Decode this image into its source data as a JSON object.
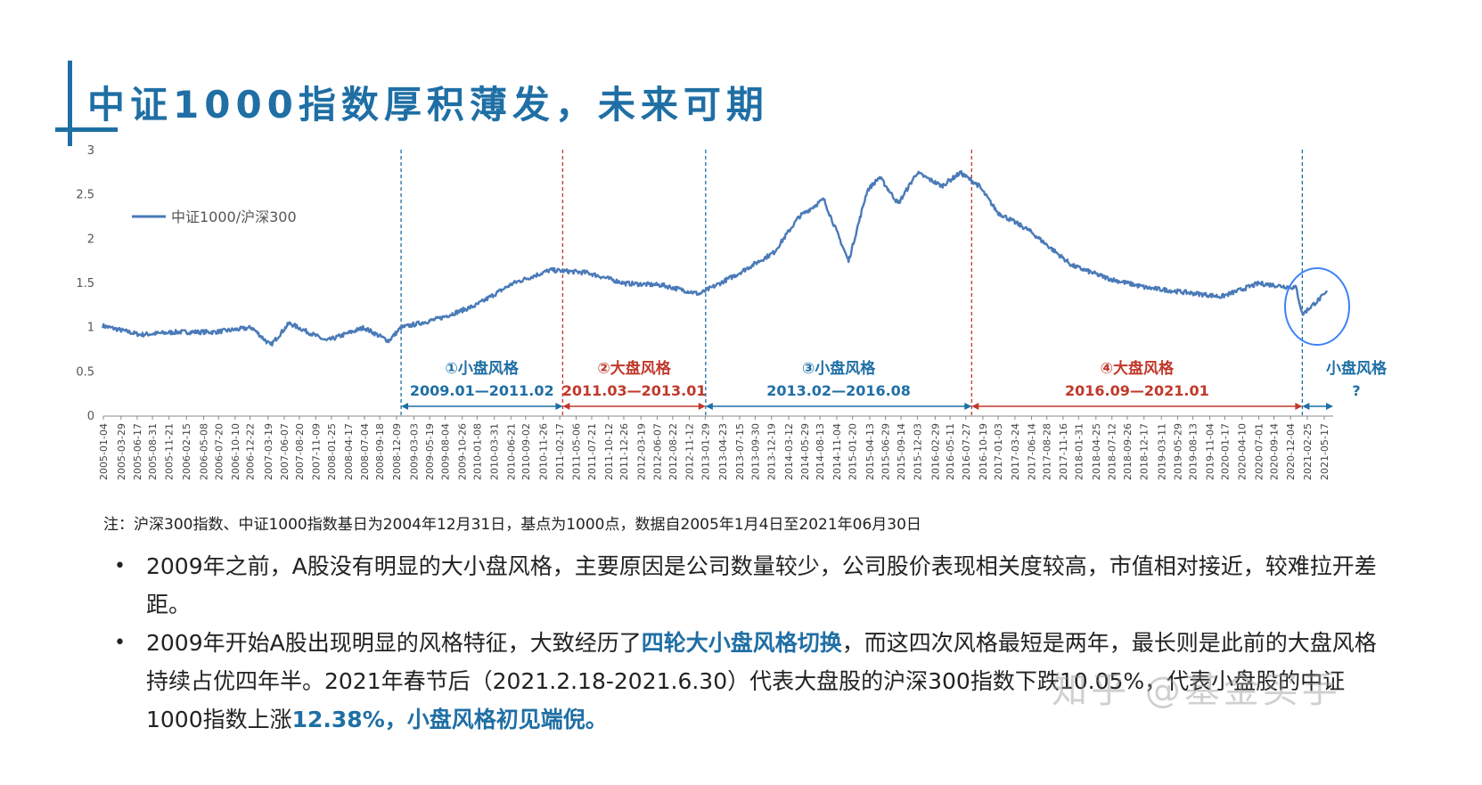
{
  "title": "中证1000指数厚积薄发，未来可期",
  "colors": {
    "accent": "#1f6fa5",
    "line": "#4a7ab8",
    "small_cap": "#1f6fa5",
    "large_cap": "#c0392b"
  },
  "chart_data": {
    "type": "line",
    "series": [
      {
        "name": "中证1000/沪深300"
      }
    ],
    "ylim": [
      0,
      3
    ],
    "yticks": [
      "0",
      "0.5",
      "1",
      "1.5",
      "2",
      "2.5",
      "3"
    ],
    "x_tick_labels": [
      "2005-01-04",
      "2005-03-29",
      "2005-06-17",
      "2005-08-31",
      "2005-11-21",
      "2006-02-15",
      "2006-05-08",
      "2006-07-20",
      "2006-10-10",
      "2006-12-22",
      "2007-03-19",
      "2007-06-07",
      "2007-08-20",
      "2007-11-09",
      "2008-01-25",
      "2008-04-17",
      "2008-07-04",
      "2008-09-18",
      "2008-12-09",
      "2009-03-03",
      "2009-05-19",
      "2009-08-04",
      "2009-10-26",
      "2010-01-08",
      "2010-03-31",
      "2010-06-21",
      "2010-09-02",
      "2010-11-26",
      "2011-02-17",
      "2011-05-06",
      "2011-07-21",
      "2011-10-12",
      "2011-12-26",
      "2012-03-19",
      "2012-06-07",
      "2012-08-22",
      "2012-11-12",
      "2013-01-29",
      "2013-04-23",
      "2013-07-15",
      "2013-09-30",
      "2013-12-19",
      "2014-03-12",
      "2014-05-29",
      "2014-08-13",
      "2014-11-04",
      "2015-01-20",
      "2015-04-13",
      "2015-06-29",
      "2015-09-14",
      "2015-12-03",
      "2016-02-29",
      "2016-05-11",
      "2016-07-27",
      "2016-10-19",
      "2017-01-03",
      "2017-03-24",
      "2017-06-14",
      "2017-08-28",
      "2017-11-16",
      "2018-01-31",
      "2018-04-25",
      "2018-07-12",
      "2018-09-26",
      "2018-12-17",
      "2019-03-11",
      "2019-05-29",
      "2019-08-13",
      "2019-11-04",
      "2020-01-17",
      "2020-04-10",
      "2020-07-01",
      "2020-09-14",
      "2020-12-04",
      "2021-02-25",
      "2021-05-17"
    ],
    "x": [
      "2005-01",
      "2005-07",
      "2006-01",
      "2006-07",
      "2007-01",
      "2007-04",
      "2007-07",
      "2008-01",
      "2008-07",
      "2008-11",
      "2009-01",
      "2009-07",
      "2010-01",
      "2010-07",
      "2011-01",
      "2011-07",
      "2012-01",
      "2012-07",
      "2013-01",
      "2013-07",
      "2014-01",
      "2014-05",
      "2014-09",
      "2015-01",
      "2015-04",
      "2015-06",
      "2015-09",
      "2015-12",
      "2016-04",
      "2016-07",
      "2016-10",
      "2017-01",
      "2017-06",
      "2018-01",
      "2018-07",
      "2019-01",
      "2019-07",
      "2020-01",
      "2020-07",
      "2021-01",
      "2021-02",
      "2021-06"
    ],
    "values": [
      1.02,
      0.92,
      0.95,
      0.95,
      1.0,
      0.8,
      1.05,
      0.85,
      1.0,
      0.85,
      1.0,
      1.1,
      1.25,
      1.5,
      1.65,
      1.62,
      1.5,
      1.48,
      1.38,
      1.6,
      1.85,
      2.25,
      2.45,
      1.75,
      2.55,
      2.7,
      2.4,
      2.75,
      2.6,
      2.75,
      2.6,
      2.3,
      2.1,
      1.7,
      1.55,
      1.45,
      1.4,
      1.35,
      1.5,
      1.45,
      1.15,
      1.4
    ],
    "regions": [
      {
        "label": "①小盘风格",
        "range": "2009.01—2011.02",
        "style": "small_cap"
      },
      {
        "label": "②大盘风格",
        "range": "2011.03—2013.01",
        "style": "large_cap"
      },
      {
        "label": "③小盘风格",
        "range": "2013.02—2016.08",
        "style": "small_cap"
      },
      {
        "label": "④大盘风格",
        "range": "2016.09—2021.01",
        "style": "large_cap"
      },
      {
        "label": "小盘风格",
        "range": "?",
        "style": "small_cap"
      }
    ]
  },
  "note": "注：沪深300指数、中证1000指数基日为2004年12月31日，基点为1000点，数据自2005年1月4日至2021年06月30日",
  "bullets": [
    {
      "text": "2009年之前，A股没有明显的大小盘风格，主要原因是公司数量较少，公司股价表现相关度较高，市值相对接近，较难拉开差距。"
    },
    {
      "pre": "2009年开始A股出现明显的风格特征，大致经历了",
      "hl1": "四轮大小盘风格切换",
      "mid": "，而这四次风格最短是两年，最长则是此前的大盘风格持续占优四年半。2021年春节后（2021.2.18-2021.6.30）代表大盘股的沪深300指数下跌10.05%，代表小盘股的中证1000指数上涨",
      "hl2": "12.38%，小盘风格初见端倪。"
    }
  ],
  "watermark": "知乎 @基金买手"
}
